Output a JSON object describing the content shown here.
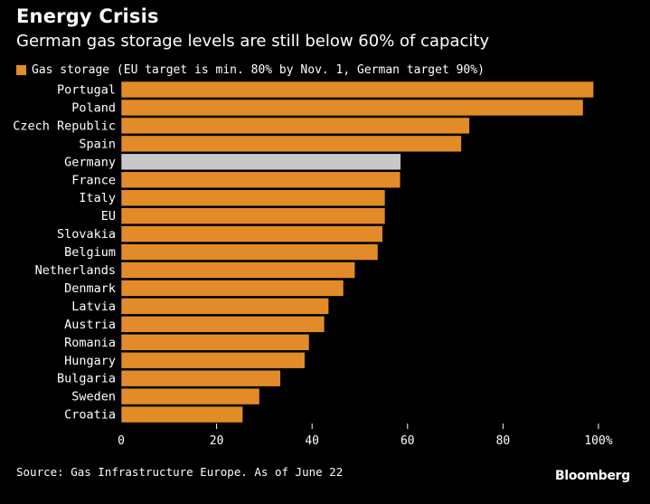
{
  "colors": {
    "background": "#000000",
    "bar": "#e38b29",
    "highlight": "#c8c8c8",
    "bar_stroke": "#000000",
    "text": "#ffffff"
  },
  "chart_data": {
    "type": "bar",
    "orientation": "horizontal",
    "title": "Energy Crisis",
    "subtitle": "German gas storage levels are still below 60% of capacity",
    "legend": {
      "position": "top-left",
      "entries": [
        "Gas storage (EU target is min. 80% by Nov. 1, German target 90%)"
      ]
    },
    "categories": [
      "Portugal",
      "Poland",
      "Czech Republic",
      "Spain",
      "Germany",
      "France",
      "Italy",
      "EU",
      "Slovakia",
      "Belgium",
      "Netherlands",
      "Denmark",
      "Latvia",
      "Austria",
      "Romania",
      "Hungary",
      "Bulgaria",
      "Sweden",
      "Croatia"
    ],
    "series": [
      {
        "name": "Gas storage (EU target is min. 80% by Nov. 1, German target 90%)",
        "values": [
          99,
          96.8,
          73,
          71.3,
          58.6,
          58.5,
          55.3,
          55.3,
          54.8,
          53.8,
          49,
          46.6,
          43.5,
          42.6,
          39.4,
          38.5,
          33.4,
          29,
          25.5
        ]
      }
    ],
    "highlight_category": "Germany",
    "xlim": [
      0,
      100
    ],
    "x_ticks": [
      "0",
      "20",
      "40",
      "60",
      "80",
      "100%"
    ],
    "x_tick_values": [
      0,
      20,
      40,
      60,
      80,
      100
    ],
    "grid": false
  },
  "footer": {
    "source": "Source: Gas Infrastructure Europe. As of June 22",
    "brand": "Bloomberg"
  }
}
